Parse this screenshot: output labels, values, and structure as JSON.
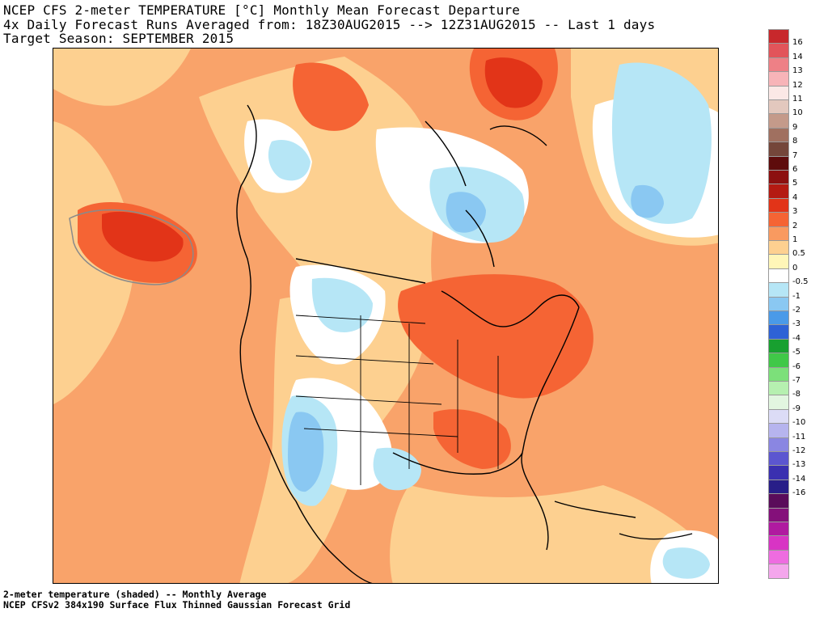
{
  "header": {
    "line1": "NCEP CFS 2-meter TEMPERATURE [°C] Monthly Mean Forecast Departure",
    "line2": "4x Daily Forecast Runs Averaged from: 18Z30AUG2015 --> 12Z31AUG2015 -- Last 1 days",
    "line3": "Target Season: SEPTEMBER 2015"
  },
  "footer": {
    "line1": "2-meter temperature (shaded) -- Monthly Average",
    "line2": "NCEP CFSv2 384x190 Surface Flux Thinned Gaussian Forecast Grid"
  },
  "legend": {
    "levels": [
      {
        "label": "16",
        "color": "#c8282c"
      },
      {
        "label": "14",
        "color": "#e2545a"
      },
      {
        "label": "13",
        "color": "#ee8086"
      },
      {
        "label": "12",
        "color": "#f7b4b8"
      },
      {
        "label": "11",
        "color": "#fbe8e6"
      },
      {
        "label": "10",
        "color": "#e3c8be"
      },
      {
        "label": "9",
        "color": "#c49a8a"
      },
      {
        "label": "8",
        "color": "#a07060"
      },
      {
        "label": "7",
        "color": "#74463a"
      },
      {
        "label": "6",
        "color": "#5e0c0c"
      },
      {
        "label": "5",
        "color": "#8c1010"
      },
      {
        "label": "4",
        "color": "#b41a12"
      },
      {
        "label": "3",
        "color": "#e23418"
      },
      {
        "label": "2",
        "color": "#f56434"
      },
      {
        "label": "1",
        "color": "#f99a60"
      },
      {
        "label": "0.5",
        "color": "#fdd090"
      },
      {
        "label": "0",
        "color": "#fff6b8"
      },
      {
        "label": "-0.5",
        "color": "#ffffff"
      },
      {
        "label": "-1",
        "color": "#b6e6f6"
      },
      {
        "label": "-2",
        "color": "#8ac8f2"
      },
      {
        "label": "-3",
        "color": "#4a9ae8"
      },
      {
        "label": "-4",
        "color": "#2e62d6"
      },
      {
        "label": "-5",
        "color": "#18a030"
      },
      {
        "label": "-6",
        "color": "#40c848"
      },
      {
        "label": "-7",
        "color": "#7ce07a"
      },
      {
        "label": "-8",
        "color": "#b6f0b0"
      },
      {
        "label": "-9",
        "color": "#e2f6e0"
      },
      {
        "label": "-10",
        "color": "#dcdcf6"
      },
      {
        "label": "-11",
        "color": "#b6b4ee"
      },
      {
        "label": "-12",
        "color": "#8a86e2"
      },
      {
        "label": "-13",
        "color": "#5c56d0"
      },
      {
        "label": "-14",
        "color": "#3a30b0"
      },
      {
        "label": "-16",
        "color": "#281e88"
      },
      {
        "label": "",
        "color": "#5a0c5a"
      },
      {
        "label": "",
        "color": "#84107a"
      },
      {
        "label": "",
        "color": "#b01aa0"
      },
      {
        "label": "",
        "color": "#d834c4"
      },
      {
        "label": "",
        "color": "#ee6ce0"
      },
      {
        "label": "",
        "color": "#f4a6ec"
      }
    ]
  }
}
